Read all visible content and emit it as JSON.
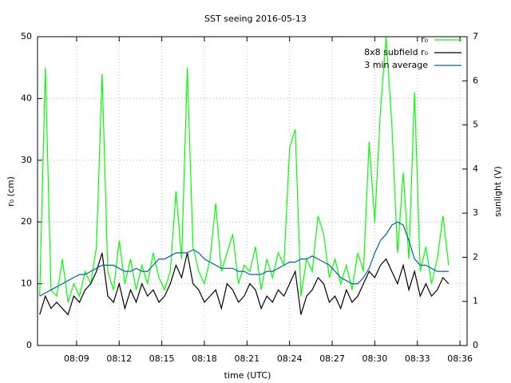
{
  "chart_data": {
    "type": "line",
    "title": "SST seeing 2016-05-13",
    "xlabel": "time (UTC)",
    "ylabel": "r₀ (cm)",
    "y2label": "sunlight (V)",
    "x": [
      6.4,
      6.8,
      7.2,
      7.6,
      8.0,
      8.4,
      8.8,
      9.2,
      9.6,
      10.0,
      10.4,
      10.8,
      11.2,
      11.6,
      12.0,
      12.4,
      12.8,
      13.2,
      13.6,
      14.0,
      14.4,
      14.8,
      15.2,
      15.6,
      16.0,
      16.4,
      16.8,
      17.2,
      17.6,
      18.0,
      18.4,
      18.8,
      19.2,
      19.6,
      20.0,
      20.4,
      20.8,
      21.2,
      21.6,
      22.0,
      22.4,
      22.8,
      23.2,
      23.6,
      24.0,
      24.4,
      24.8,
      25.2,
      25.6,
      26.0,
      26.4,
      26.8,
      27.2,
      27.6,
      28.0,
      28.4,
      28.8,
      29.2,
      29.6,
      30.0,
      30.4,
      30.8,
      31.2,
      31.6,
      32.0,
      32.4,
      32.8,
      33.2,
      33.6,
      34.0,
      34.4,
      34.8,
      35.2
    ],
    "series": [
      {
        "name": "r₀",
        "color": "#00ff00",
        "values": [
          8,
          45,
          9,
          8,
          14,
          7,
          10,
          8,
          12,
          10,
          16,
          44,
          12,
          9,
          17,
          10,
          14,
          9,
          13,
          10,
          15,
          11,
          9,
          12,
          25,
          14,
          45,
          16,
          12,
          10,
          14,
          23,
          12,
          15,
          18,
          10,
          13,
          12,
          16,
          9,
          14,
          11,
          15,
          13,
          32,
          35,
          8,
          14,
          12,
          21,
          18,
          11,
          14,
          10,
          13,
          9,
          15,
          12,
          33,
          20,
          38,
          50,
          36,
          15,
          28,
          14,
          41,
          12,
          16,
          10,
          14,
          21,
          13
        ]
      },
      {
        "name": "8x8 subfield r₀",
        "color": "#000000",
        "values": [
          5,
          8,
          6,
          7,
          6,
          5,
          8,
          7,
          9,
          10,
          12,
          15,
          8,
          7,
          10,
          6,
          9,
          7,
          10,
          8,
          9,
          7,
          8,
          10,
          13,
          11,
          15,
          10,
          9,
          7,
          8,
          9,
          6,
          10,
          9,
          7,
          8,
          10,
          9,
          6,
          8,
          7,
          9,
          8,
          10,
          12,
          5,
          8,
          9,
          11,
          10,
          7,
          8,
          6,
          9,
          7,
          8,
          10,
          12,
          11,
          13,
          14,
          12,
          10,
          13,
          9,
          12,
          8,
          10,
          8,
          9,
          11,
          10
        ]
      },
      {
        "name": "3 min average",
        "color": "#0060ad",
        "values": [
          8,
          8.5,
          9,
          9.5,
          10,
          10.5,
          11,
          11.5,
          11.5,
          12,
          12.5,
          13,
          13,
          13,
          12.5,
          12,
          12,
          12.5,
          12,
          12,
          13,
          14,
          14,
          14.5,
          15,
          15,
          15,
          15.5,
          15,
          14,
          13.5,
          13,
          12.5,
          12.5,
          12.5,
          12,
          12,
          11.5,
          11.5,
          11.5,
          12,
          12,
          12.5,
          13,
          13.5,
          13.5,
          14,
          14,
          14.5,
          14,
          13.5,
          13,
          12,
          11,
          10.5,
          10,
          10,
          11,
          12.5,
          15,
          17,
          18,
          19.5,
          20,
          19.5,
          17,
          14,
          13,
          13,
          12.5,
          12,
          12,
          12
        ]
      }
    ],
    "xlim": [
      6.25,
      36.5
    ],
    "xticks": [
      {
        "value": 9,
        "label": "08:09"
      },
      {
        "value": 12,
        "label": "08:12"
      },
      {
        "value": 15,
        "label": "08:15"
      },
      {
        "value": 18,
        "label": "08:18"
      },
      {
        "value": 21,
        "label": "08:21"
      },
      {
        "value": 24,
        "label": "08:24"
      },
      {
        "value": 27,
        "label": "08:27"
      },
      {
        "value": 30,
        "label": "08:30"
      },
      {
        "value": 33,
        "label": "08:33"
      },
      {
        "value": 36,
        "label": "08:36"
      }
    ],
    "ylim": [
      0,
      50
    ],
    "yticks": [
      0,
      10,
      20,
      30,
      40,
      50
    ],
    "y2lim": [
      0,
      7
    ],
    "y2ticks": [
      0,
      1,
      2,
      3,
      4,
      5,
      6,
      7
    ],
    "grid": true,
    "legend": "upper right"
  }
}
